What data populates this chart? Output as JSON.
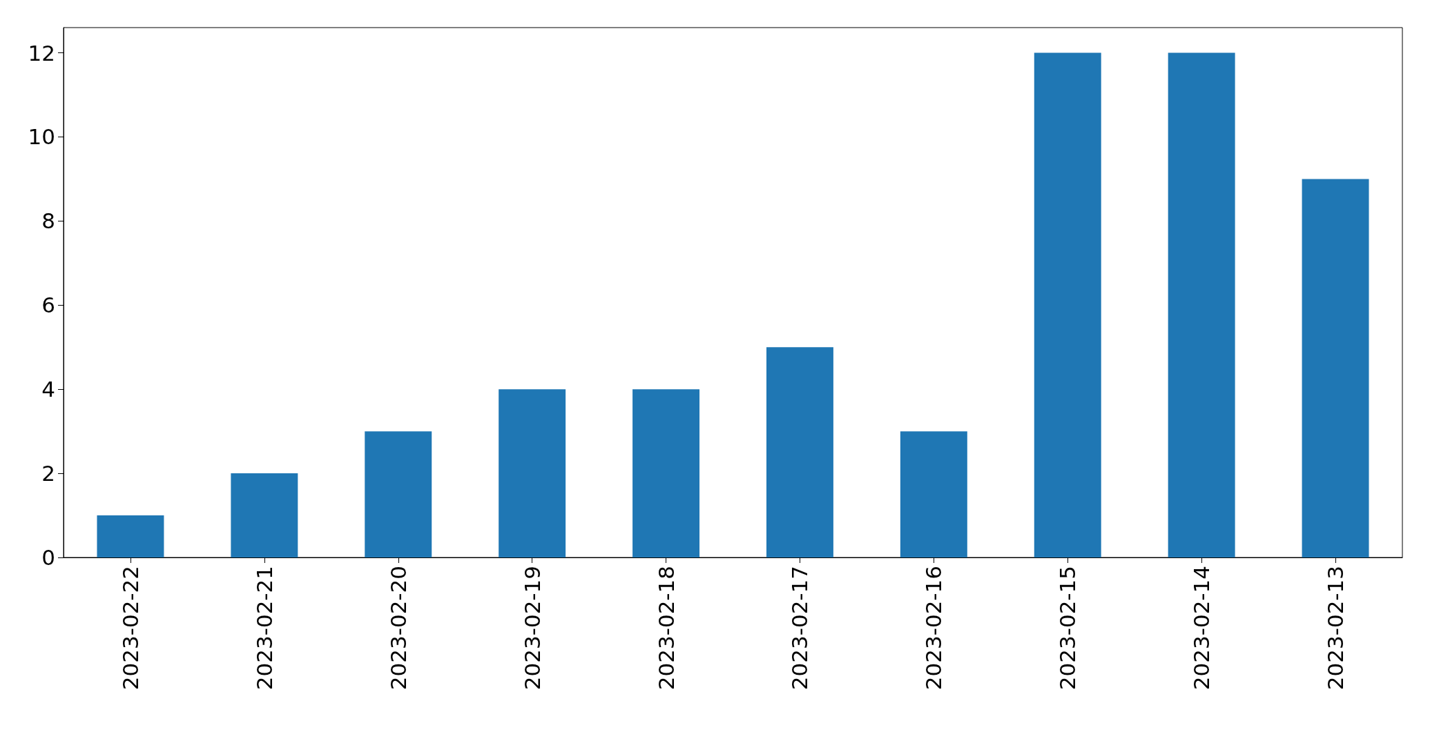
{
  "chart_data": {
    "type": "bar",
    "categories": [
      "2023-02-22",
      "2023-02-21",
      "2023-02-20",
      "2023-02-19",
      "2023-02-18",
      "2023-02-17",
      "2023-02-16",
      "2023-02-15",
      "2023-02-14",
      "2023-02-13"
    ],
    "values": [
      1,
      2,
      3,
      4,
      4,
      5,
      3,
      12,
      12,
      9
    ],
    "color": "#1f77b4",
    "ylim": [
      0,
      12.6
    ],
    "yticks": [
      0,
      2,
      4,
      6,
      8,
      10,
      12
    ]
  }
}
